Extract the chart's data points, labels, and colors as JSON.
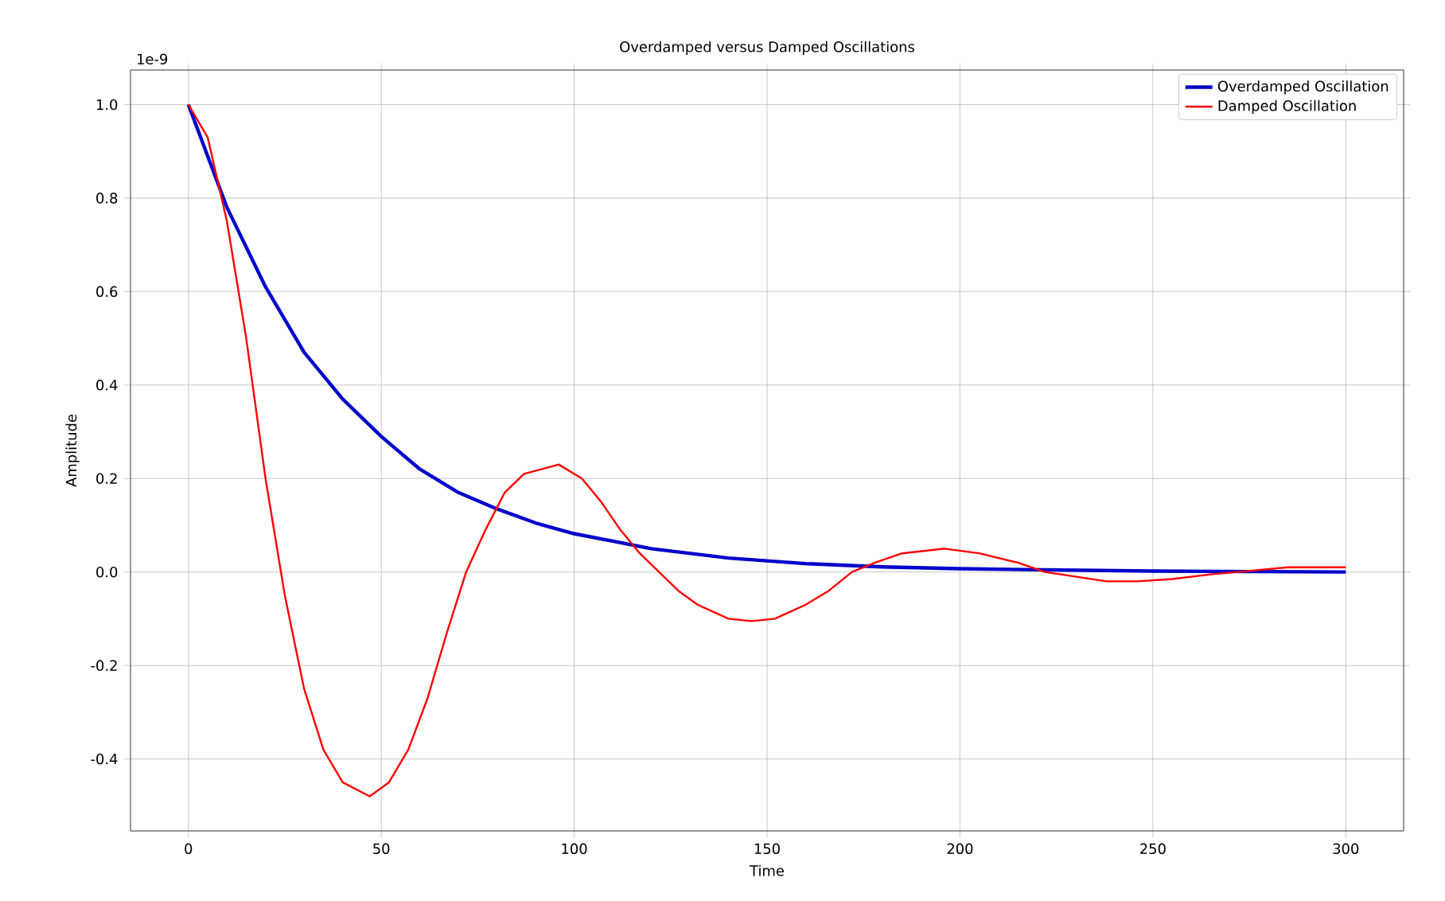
{
  "chart_data": {
    "type": "line",
    "title": "Overdamped versus Damped Oscillations",
    "xlabel": "Time",
    "ylabel": "Amplitude",
    "annotations": [
      "1e-9"
    ],
    "xlim": [
      -15,
      315
    ],
    "ylim": [
      -0.554,
      1.074
    ],
    "xticks": [
      0,
      50,
      100,
      150,
      200,
      250,
      300
    ],
    "yticks": [
      -0.4,
      -0.2,
      {
        "value": 0,
        "label": "0.0"
      },
      0.2,
      0.4,
      0.6,
      0.8,
      {
        "value": 1,
        "label": "1.0"
      }
    ],
    "grid": true,
    "legend": "top right",
    "marker": "none",
    "line_style": "solid",
    "series": [
      {
        "name": "Overdamped Oscillation",
        "color": "#0000cc",
        "x": [
          0,
          10,
          20,
          30,
          40,
          50,
          60,
          70,
          80,
          90,
          100,
          120,
          140,
          160,
          180,
          200,
          250,
          300
        ],
        "values": [
          1.0,
          0.78,
          0.61,
          0.47,
          0.37,
          0.29,
          0.22,
          0.17,
          0.135,
          0.105,
          0.082,
          0.05,
          0.03,
          0.018,
          0.011,
          0.007,
          0.002,
          0.0
        ]
      },
      {
        "name": "Damped Oscillation",
        "color": "#ff0000",
        "x": [
          0,
          5,
          10,
          15,
          20,
          25,
          30,
          35,
          40,
          47,
          52,
          57,
          62,
          67,
          72,
          77,
          82,
          87,
          96,
          102,
          107,
          112,
          117,
          122,
          127,
          132,
          140,
          146,
          152,
          160,
          166,
          172,
          178,
          185,
          196,
          205,
          215,
          222,
          230,
          238,
          246,
          255,
          265,
          272,
          285,
          300
        ],
        "values": [
          1.0,
          0.93,
          0.75,
          0.5,
          0.2,
          -0.05,
          -0.25,
          -0.38,
          -0.45,
          -0.48,
          -0.45,
          -0.38,
          -0.27,
          -0.13,
          0.0,
          0.09,
          0.17,
          0.21,
          0.23,
          0.2,
          0.15,
          0.09,
          0.04,
          0.0,
          -0.04,
          -0.07,
          -0.1,
          -0.105,
          -0.1,
          -0.07,
          -0.04,
          0.0,
          0.02,
          0.04,
          0.05,
          0.04,
          0.02,
          0.0,
          -0.01,
          -0.02,
          -0.02,
          -0.015,
          -0.005,
          0.0,
          0.01,
          0.01
        ]
      }
    ]
  }
}
